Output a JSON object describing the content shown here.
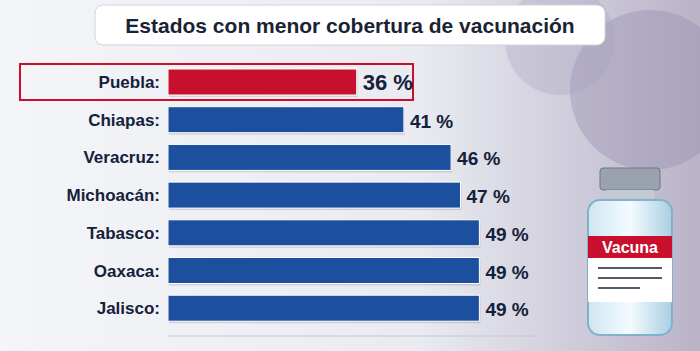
{
  "chart_data": {
    "type": "bar",
    "orientation": "horizontal",
    "title": "Estados con menor cobertura de vacunación",
    "categories": [
      "Puebla:",
      "Chiapas:",
      "Veracruz:",
      "Michoacán:",
      "Tabasco:",
      "Oaxaca:",
      "Jalisco:"
    ],
    "values": [
      36,
      41,
      46,
      47,
      49,
      49,
      49
    ],
    "value_labels": [
      "36 %",
      "41 %",
      "46 %",
      "47 %",
      "49 %",
      "49 %",
      "49 %"
    ],
    "colors": [
      "#c8102e",
      "#1d4f9f",
      "#1d4f9f",
      "#1d4f9f",
      "#1d4f9f",
      "#1d4f9f",
      "#1d4f9f"
    ],
    "xlim": [
      16,
      55
    ],
    "grid": false,
    "data_labels": true,
    "tick_labels": false,
    "annotations": [
      "Vacuna"
    ]
  }
}
